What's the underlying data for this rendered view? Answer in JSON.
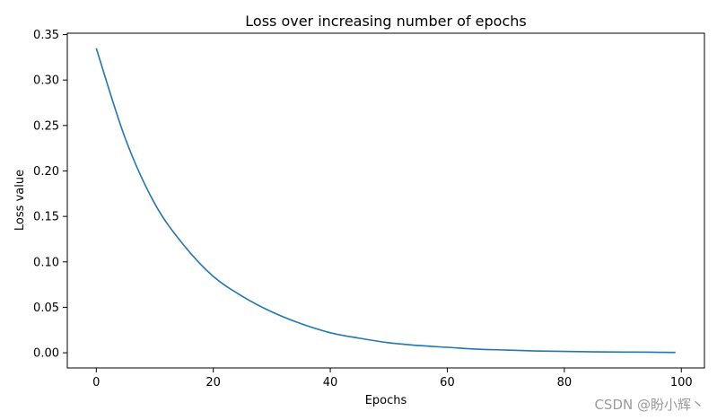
{
  "chart_data": {
    "type": "line",
    "title": "Loss over increasing number of epochs",
    "xlabel": "Epochs",
    "ylabel": "Loss value",
    "xlim": [
      -4.95,
      103.95
    ],
    "ylim": [
      -0.0167,
      0.3515
    ],
    "xticks": [
      0,
      20,
      40,
      60,
      80,
      100
    ],
    "xtick_labels": [
      "0",
      "20",
      "40",
      "60",
      "80",
      "100"
    ],
    "yticks": [
      0.0,
      0.05,
      0.1,
      0.15,
      0.2,
      0.25,
      0.3,
      0.35
    ],
    "ytick_labels": [
      "0.00",
      "0.05",
      "0.10",
      "0.15",
      "0.20",
      "0.25",
      "0.30",
      "0.35"
    ],
    "grid": false,
    "series": [
      {
        "name": "loss",
        "color": "#1f77b4",
        "x": [
          0,
          5,
          10,
          15,
          20,
          25,
          30,
          35,
          40,
          45,
          50,
          55,
          60,
          65,
          70,
          75,
          80,
          85,
          90,
          95,
          99
        ],
        "y": [
          0.335,
          0.235,
          0.164,
          0.118,
          0.084,
          0.062,
          0.045,
          0.032,
          0.022,
          0.016,
          0.011,
          0.008,
          0.006,
          0.004,
          0.003,
          0.002,
          0.0015,
          0.001,
          0.0008,
          0.0006,
          0.0004
        ]
      }
    ]
  },
  "watermark": "CSDN @盼小辉丶"
}
